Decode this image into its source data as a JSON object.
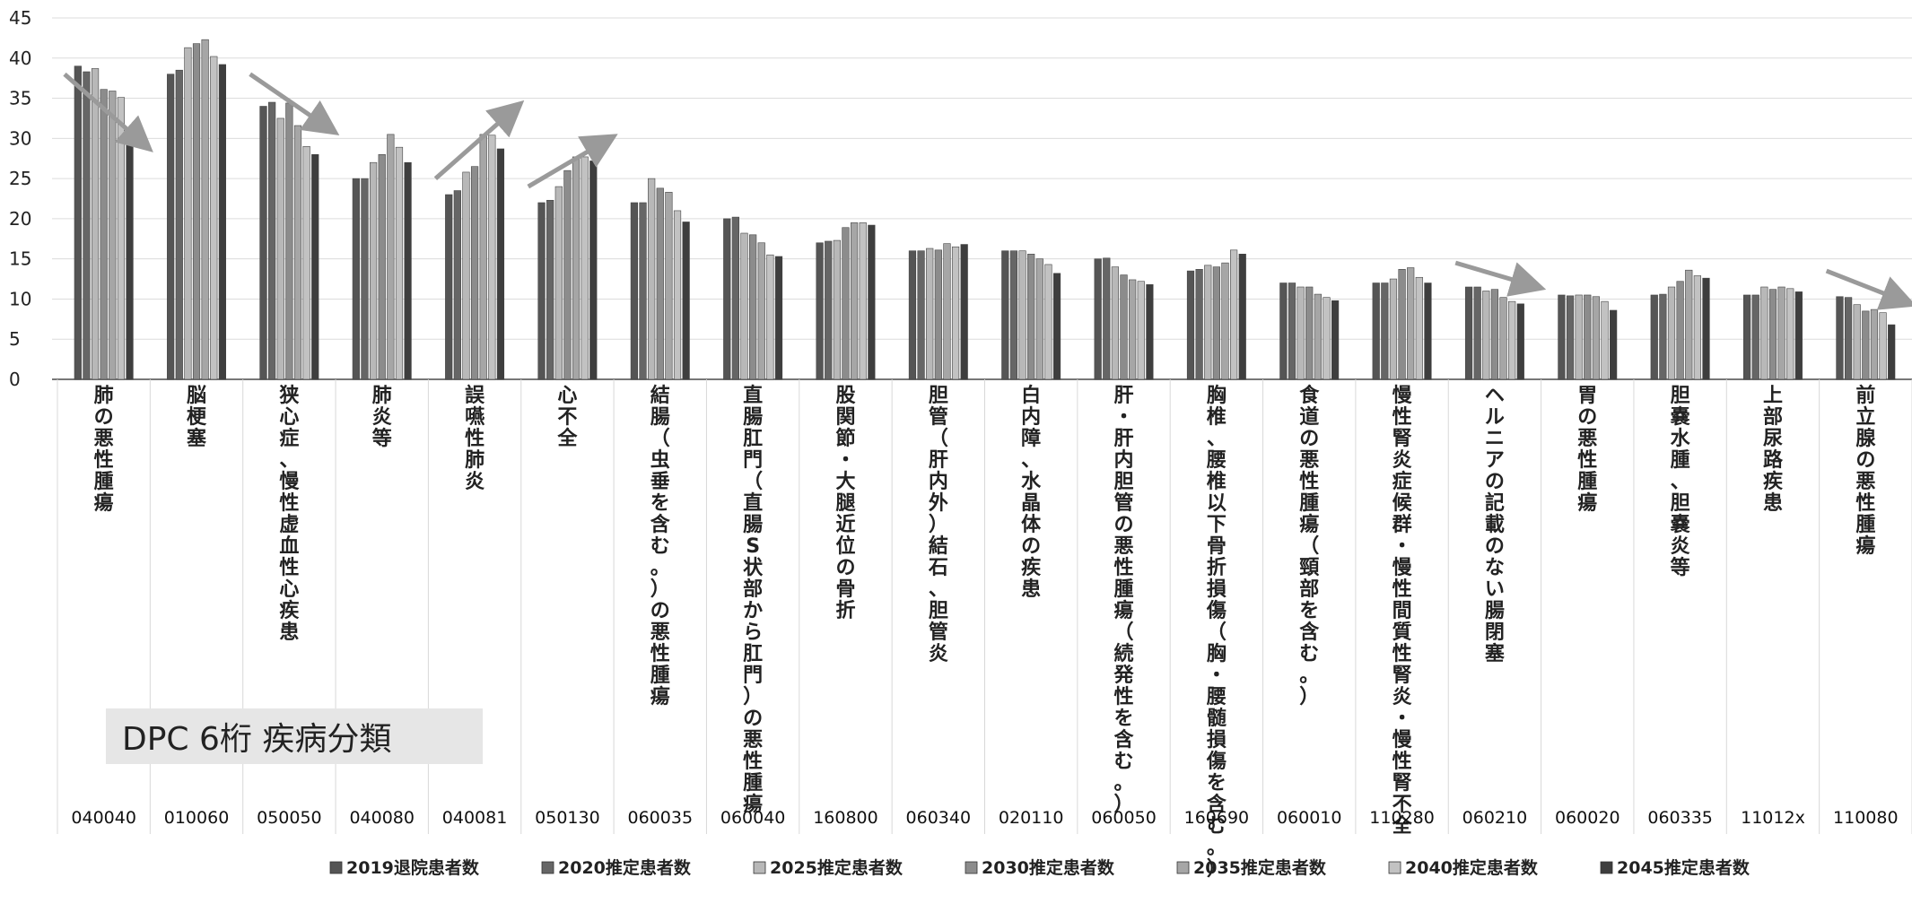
{
  "chart_data": {
    "type": "bar",
    "title": "",
    "xlabel": "",
    "ylabel": "",
    "ylim": [
      0,
      45
    ],
    "yticks": [
      0,
      5,
      10,
      15,
      20,
      25,
      30,
      35,
      40,
      45
    ],
    "grid": true,
    "legend_position": "bottom",
    "categories": [
      "肺の悪性腫瘍",
      "脳梗塞",
      "狭心症、慢性虚血性心疾患",
      "肺炎等",
      "誤嚥性肺炎",
      "心不全",
      "結腸（虫垂を含む。）の悪性腫瘍",
      "直腸肛門（直腸S状部から肛門）の悪性腫瘍",
      "股関節・大腿近位の骨折",
      "胆管（肝内外）結石、胆管炎",
      "白内障、水晶体の疾患",
      "肝・肝内胆管の悪性腫瘍（続発性を含む。）",
      "胸椎、腰椎以下骨折損傷（胸・腰髄損傷を含む。）",
      "食道の悪性腫瘍（頸部を含む。）",
      "慢性腎炎症候群・慢性間質性腎炎・慢性腎不全",
      "ヘルニアの記載のない腸閉塞",
      "胃の悪性腫瘍",
      "胆嚢水腫、胆嚢炎等",
      "上部尿路疾患",
      "前立腺の悪性腫瘍"
    ],
    "codes": [
      "040040",
      "010060",
      "050050",
      "040080",
      "040081",
      "050130",
      "060035",
      "060040",
      "160800",
      "060340",
      "020110",
      "060050",
      "160690",
      "060010",
      "110280",
      "060210",
      "060020",
      "060335",
      "11012x",
      "110080"
    ],
    "series": [
      {
        "name": "2019退院患者数",
        "values": [
          39,
          38,
          34,
          25,
          23,
          22,
          22,
          20,
          17,
          16,
          16,
          15,
          13.5,
          12,
          12,
          11.5,
          10.5,
          10.5,
          10.5,
          10.3
        ]
      },
      {
        "name": "2020推定患者数",
        "values": [
          38.3,
          38.5,
          34.5,
          25,
          23.5,
          22.3,
          22,
          20.2,
          17.2,
          16,
          16,
          15.1,
          13.7,
          12,
          12,
          11.5,
          10.4,
          10.6,
          10.5,
          10.2
        ]
      },
      {
        "name": "2025推定患者数",
        "values": [
          38.7,
          41.3,
          32.5,
          27,
          25.8,
          24,
          25,
          18.2,
          17.3,
          16.3,
          16,
          14,
          14.2,
          11.5,
          12.5,
          11,
          10.5,
          11.5,
          11.5,
          9.3
        ]
      },
      {
        "name": "2030推定患者数",
        "values": [
          36.1,
          41.8,
          34.4,
          28,
          26.5,
          26,
          23.8,
          18,
          18.9,
          16.1,
          15.6,
          13,
          14,
          11.5,
          13.7,
          11.2,
          10.5,
          12.2,
          11.2,
          8.5
        ]
      },
      {
        "name": "2035推定患者数",
        "values": [
          35.9,
          42.3,
          31.6,
          30.5,
          30.5,
          27.7,
          23.3,
          17,
          19.5,
          16.9,
          15,
          12.4,
          14.5,
          10.6,
          13.9,
          10.2,
          10.3,
          13.6,
          11.5,
          8.7
        ]
      },
      {
        "name": "2040推定患者数",
        "values": [
          35.1,
          40.2,
          29,
          28.9,
          30.4,
          27.7,
          21,
          15.5,
          19.5,
          16.5,
          14.3,
          12.2,
          16.1,
          10.2,
          12.7,
          9.7,
          9.7,
          12.9,
          11.3,
          8.3
        ]
      },
      {
        "name": "2045推定患者数",
        "values": [
          31,
          39.2,
          28,
          27,
          28.7,
          27.2,
          19.6,
          15.3,
          19.2,
          16.8,
          13.2,
          11.8,
          15.6,
          9.8,
          12,
          9.4,
          8.6,
          12.6,
          10.9,
          6.8
        ]
      }
    ],
    "series_colors": [
      "#555555",
      "#666666",
      "#b8b8b8",
      "#8c8c8c",
      "#a6a6a6",
      "#c2c2c2",
      "#3e3e3e"
    ]
  },
  "annotation_label": "DPC 6桁 疾病分類"
}
